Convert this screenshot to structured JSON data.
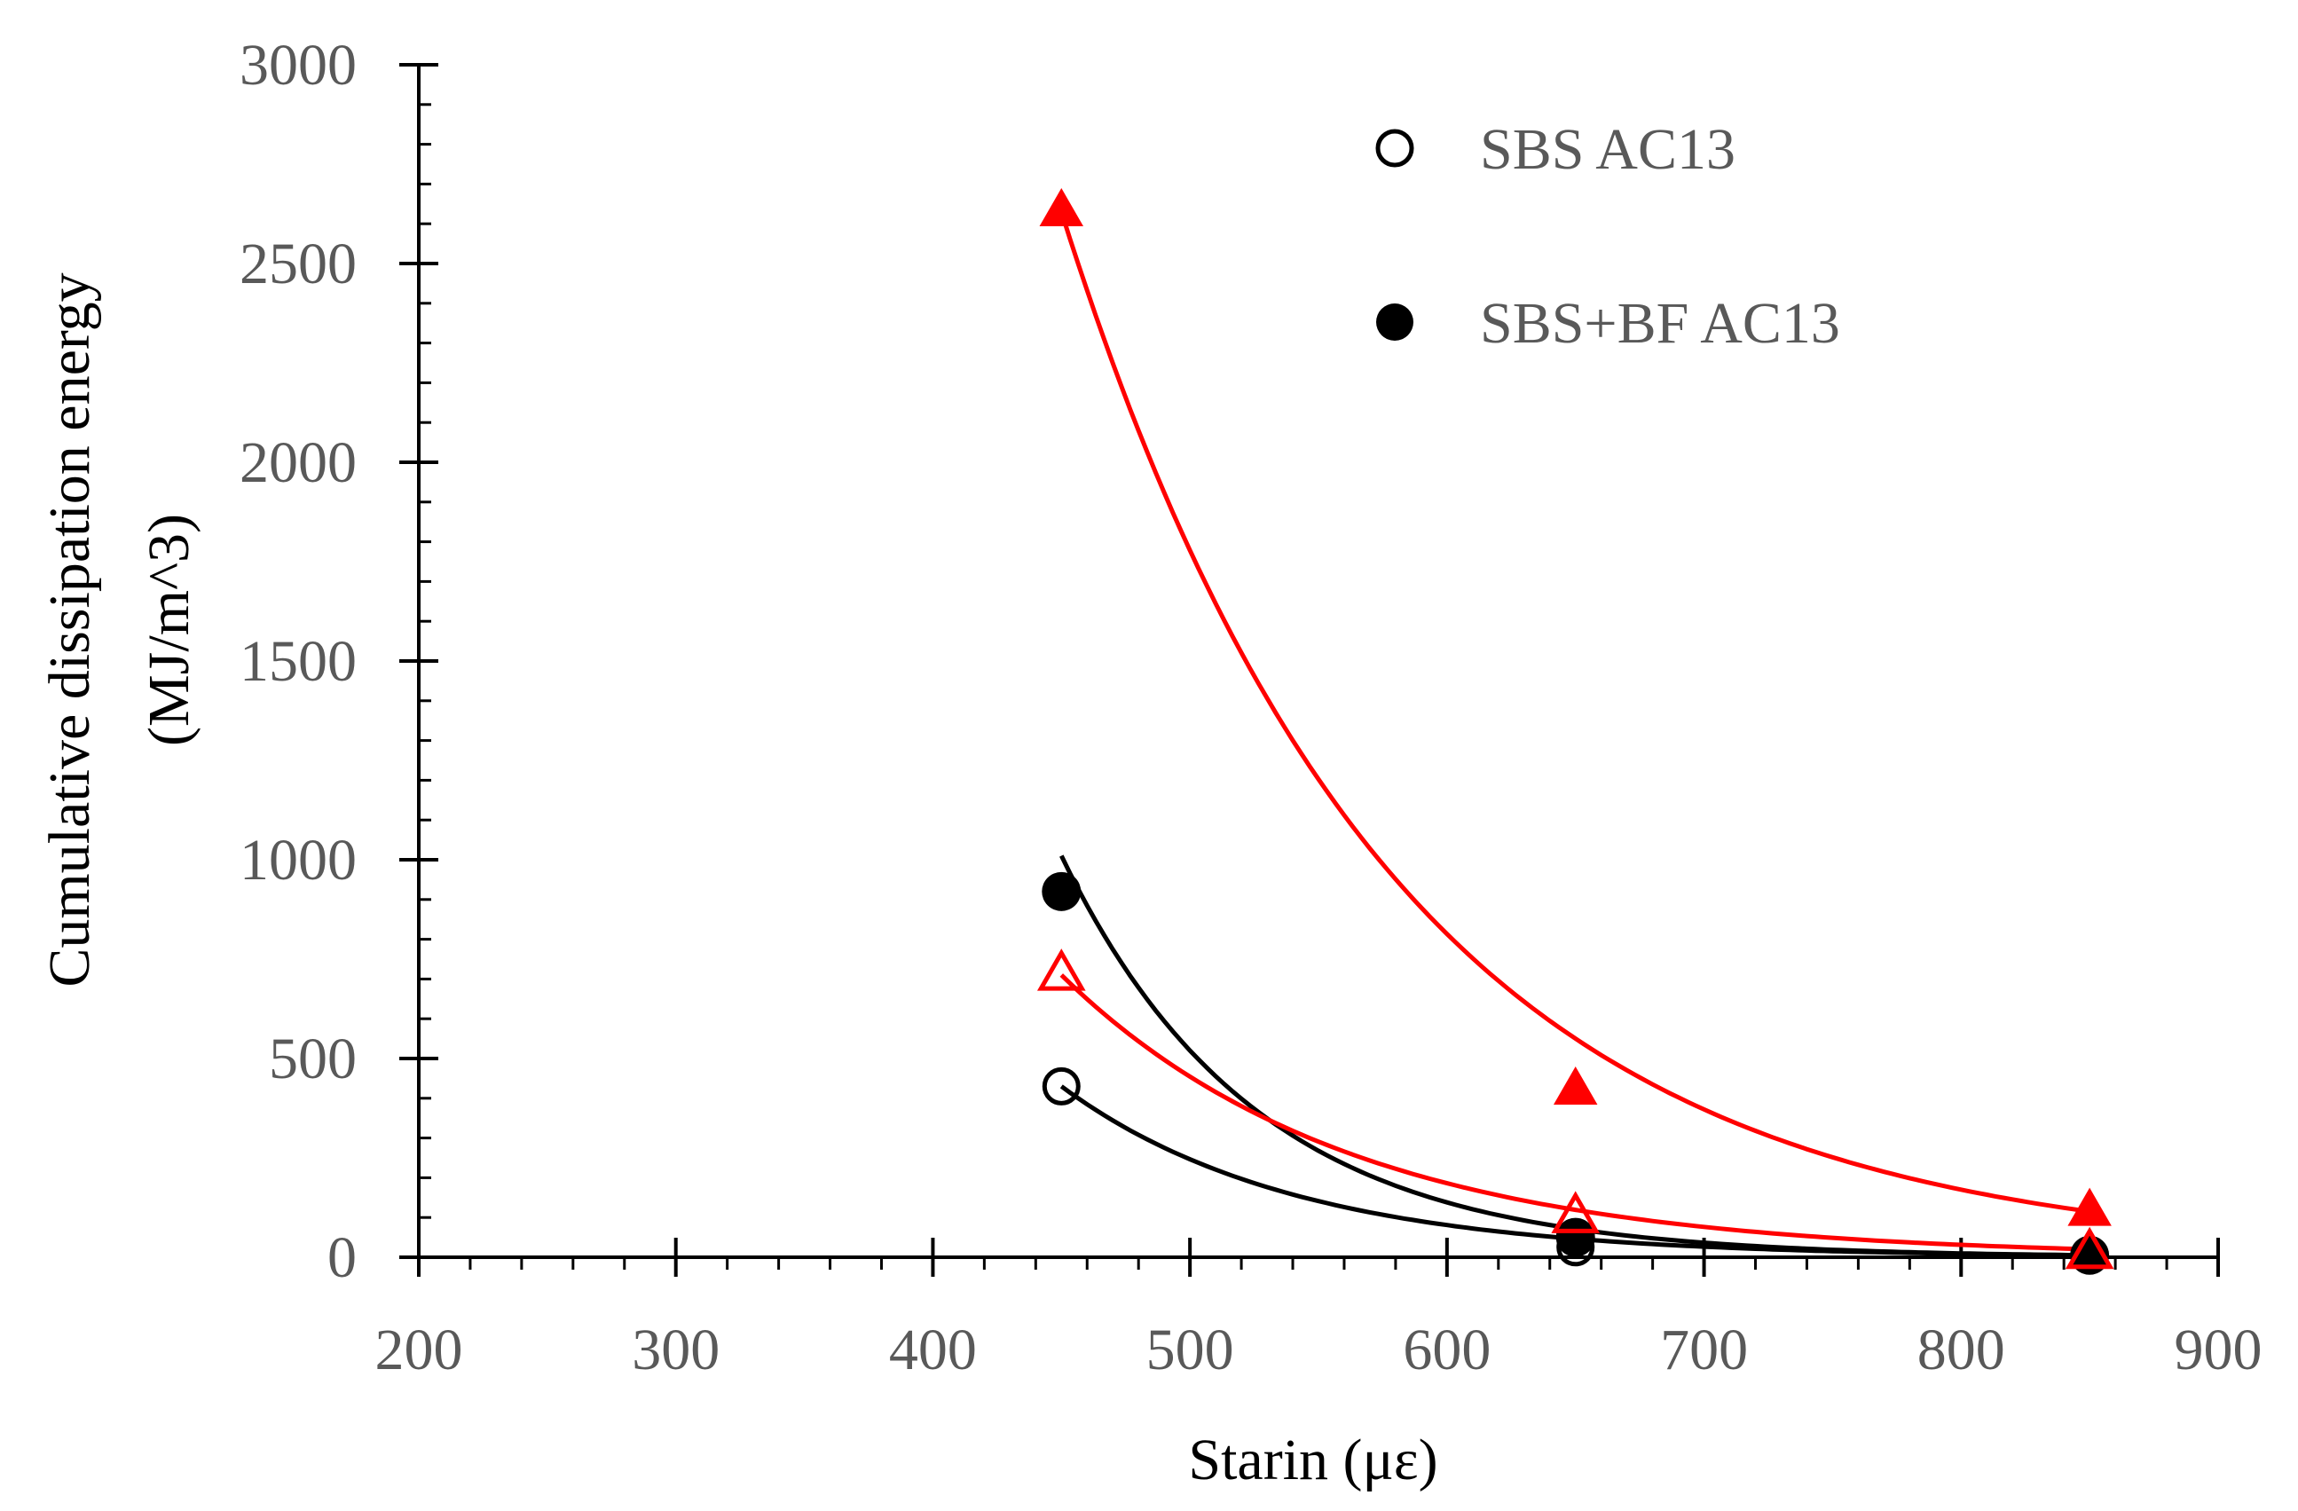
{
  "chart_data": {
    "type": "scatter",
    "title": "",
    "xlabel": "Starin (με)",
    "ylabel_line1": "Cumulative dissipation energy",
    "ylabel_line2": "(MJ/m^3)",
    "xlim": [
      200,
      900
    ],
    "ylim": [
      0,
      3000
    ],
    "x_ticks": [
      200,
      300,
      400,
      500,
      600,
      700,
      800,
      900
    ],
    "y_ticks": [
      0,
      500,
      1000,
      1500,
      2000,
      2500,
      3000
    ],
    "x_tick_labels": [
      "200",
      "300",
      "400",
      "500",
      "600",
      "700",
      "800",
      "900"
    ],
    "y_tick_labels": [
      "0",
      "500",
      "1000",
      "1500",
      "2000",
      "2500",
      "3000"
    ],
    "legend_position": "top-right",
    "series": [
      {
        "name": "SBS AC13",
        "marker": "circle-open",
        "color": "#000000",
        "in_legend": true,
        "x": [
          450,
          650,
          850
        ],
        "y": [
          430,
          25,
          5
        ],
        "fit": {
          "type": "exponential",
          "x": [
            450,
            850
          ],
          "y": [
            430,
            5
          ]
        }
      },
      {
        "name": "SBS+BF AC13",
        "marker": "circle-filled",
        "color": "#000000",
        "in_legend": true,
        "x": [
          450,
          650,
          850
        ],
        "y": [
          920,
          50,
          5
        ],
        "fit": {
          "type": "exponential",
          "x": [
            450,
            850
          ],
          "y": [
            1010,
            5
          ]
        }
      },
      {
        "name": "",
        "marker": "triangle-open",
        "color": "#ff0000",
        "in_legend": false,
        "x": [
          450,
          650,
          850
        ],
        "y": [
          710,
          100,
          10
        ],
        "fit": {
          "type": "exponential",
          "x": [
            450,
            850
          ],
          "y": [
            710,
            20
          ]
        }
      },
      {
        "name": "",
        "marker": "triangle-filled",
        "color": "#ff0000",
        "in_legend": false,
        "x": [
          450,
          650,
          850
        ],
        "y": [
          2630,
          420,
          115
        ],
        "fit": {
          "type": "exponential",
          "x": [
            450,
            850
          ],
          "y": [
            2630,
            115
          ]
        }
      }
    ]
  }
}
